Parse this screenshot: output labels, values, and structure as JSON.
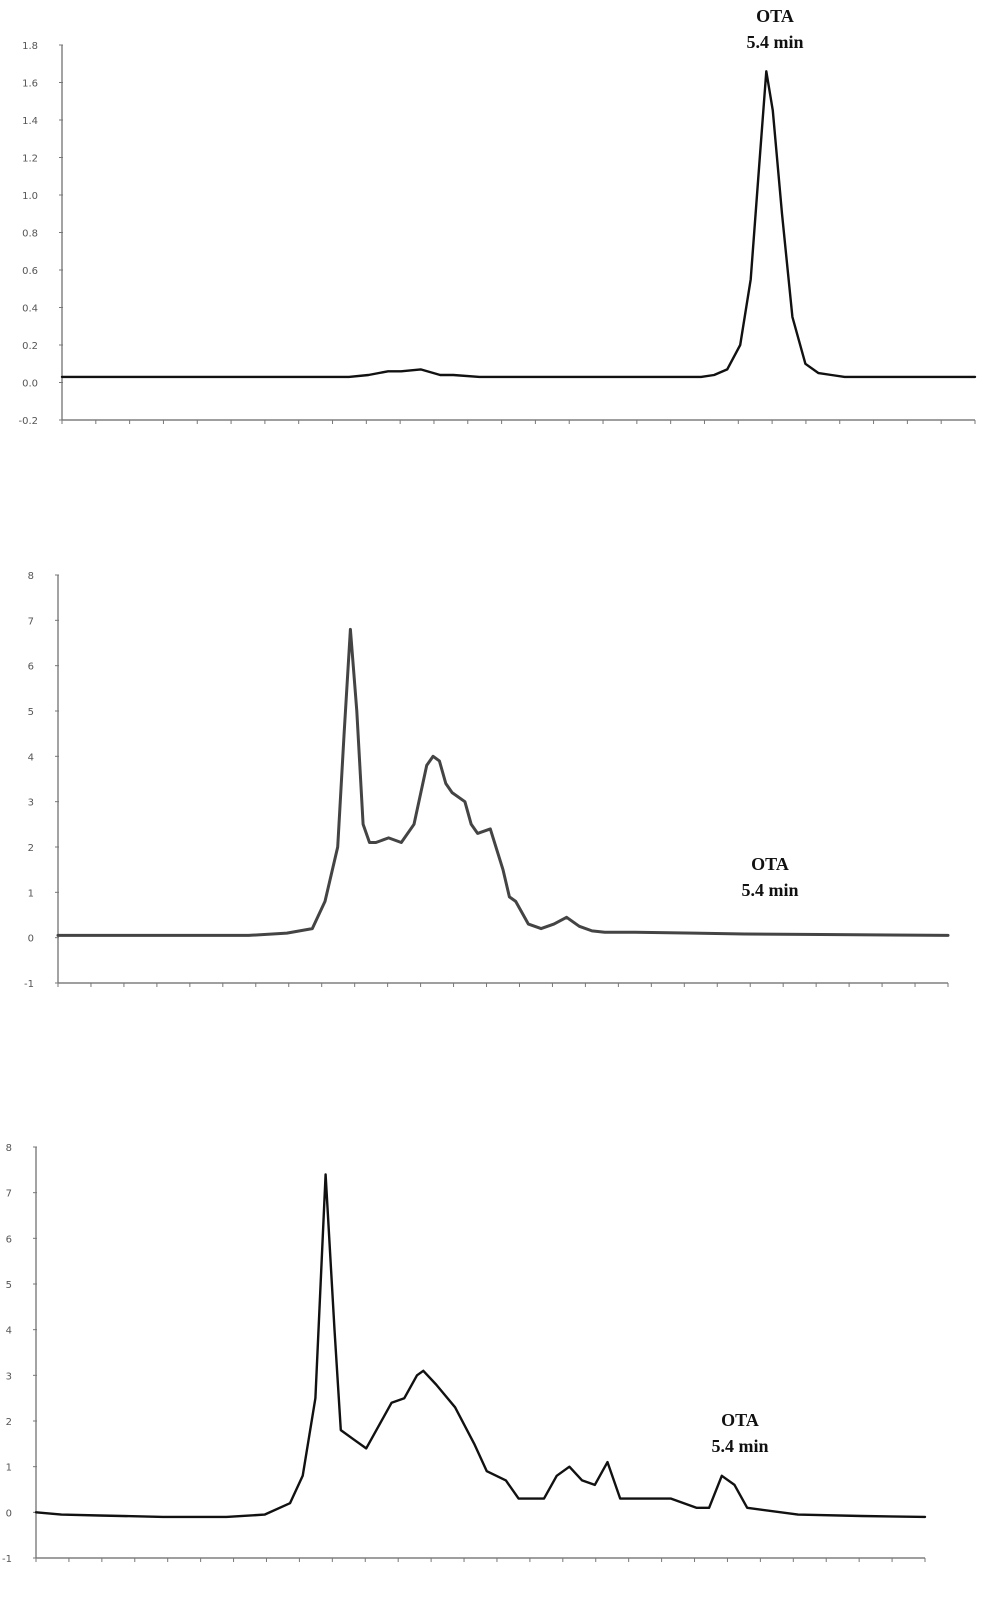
{
  "chart_data": [
    {
      "type": "line",
      "title": "",
      "xlabel": "",
      "ylabel": "",
      "ylim": [
        -0.2,
        1.8
      ],
      "xlim": [
        0,
        7
      ],
      "yticks": [
        1.8,
        1.6,
        1.4,
        1.2,
        1.0,
        0.8,
        0.6,
        0.4,
        0.2,
        0.0,
        -0.2
      ],
      "ytick_labels": [
        "1.8",
        "1.6",
        "1.4",
        "1.2",
        "1.0",
        "0.8",
        "0.6",
        "0.4",
        "0.2",
        "0.0",
        "-0.2"
      ],
      "grid": false,
      "line_color": "#111111",
      "annotation": {
        "lines": [
          "OTA",
          "5.4 min"
        ],
        "x": 5.4,
        "y": 1.66
      },
      "series": [
        {
          "x": [
            0,
            1.5,
            2.2,
            2.35,
            2.5,
            2.6,
            2.75,
            2.9,
            3.0,
            3.2,
            3.5,
            4.0,
            4.6,
            4.9,
            5.0,
            5.1,
            5.2,
            5.28,
            5.35,
            5.4,
            5.45,
            5.52,
            5.6,
            5.7,
            5.8,
            5.9,
            6.0,
            6.3,
            7.0
          ],
          "y": [
            0.03,
            0.03,
            0.03,
            0.04,
            0.06,
            0.06,
            0.07,
            0.04,
            0.04,
            0.03,
            0.03,
            0.03,
            0.03,
            0.03,
            0.04,
            0.07,
            0.2,
            0.55,
            1.2,
            1.66,
            1.45,
            0.9,
            0.35,
            0.1,
            0.05,
            0.04,
            0.03,
            0.03,
            0.03
          ]
        }
      ]
    },
    {
      "type": "line",
      "title": "",
      "xlabel": "",
      "ylabel": "",
      "ylim": [
        -1,
        8
      ],
      "xlim": [
        0,
        7
      ],
      "yticks": [
        8,
        7,
        6,
        5,
        4,
        3,
        2,
        1,
        0,
        -1
      ],
      "ytick_labels": [
        "8",
        "7",
        "6",
        "5",
        "4",
        "3",
        "2",
        "1",
        "0",
        "-1"
      ],
      "grid": false,
      "line_color": "#444444",
      "annotation": {
        "lines": [
          "OTA",
          "5.4 min"
        ],
        "x": 5.4,
        "y": 0.1
      },
      "series": [
        {
          "x": [
            0,
            1.5,
            1.8,
            2.0,
            2.1,
            2.2,
            2.25,
            2.3,
            2.35,
            2.4,
            2.45,
            2.5,
            2.6,
            2.7,
            2.8,
            2.9,
            2.95,
            3.0,
            3.05,
            3.1,
            3.2,
            3.25,
            3.3,
            3.4,
            3.5,
            3.55,
            3.6,
            3.7,
            3.8,
            3.9,
            4.0,
            4.1,
            4.2,
            4.3,
            4.5,
            5.0,
            5.4,
            6.0,
            7.0
          ],
          "y": [
            0.05,
            0.05,
            0.1,
            0.2,
            0.8,
            2.0,
            4.5,
            6.8,
            5.0,
            2.5,
            2.1,
            2.1,
            2.2,
            2.1,
            2.5,
            3.8,
            4.0,
            3.9,
            3.4,
            3.2,
            3.0,
            2.5,
            2.3,
            2.4,
            1.5,
            0.9,
            0.8,
            0.3,
            0.2,
            0.3,
            0.45,
            0.25,
            0.15,
            0.12,
            0.12,
            0.1,
            0.08,
            0.07,
            0.05
          ]
        }
      ]
    },
    {
      "type": "line",
      "title": "",
      "xlabel": "",
      "ylabel": "",
      "ylim": [
        -1,
        8
      ],
      "xlim": [
        0,
        7
      ],
      "yticks": [
        8,
        7,
        6,
        5,
        4,
        3,
        2,
        1,
        0,
        -1
      ],
      "ytick_labels": [
        "8",
        "7",
        "6",
        "5",
        "4",
        "3",
        "2",
        "1",
        "0",
        "-1"
      ],
      "grid": false,
      "line_color": "#111111",
      "annotation": {
        "lines": [
          "OTA",
          "5.4 min"
        ],
        "x": 5.4,
        "y": 0.8
      },
      "series": [
        {
          "x": [
            0,
            0.2,
            0.5,
            1.0,
            1.5,
            1.8,
            2.0,
            2.1,
            2.2,
            2.28,
            2.35,
            2.4,
            2.5,
            2.6,
            2.7,
            2.8,
            2.9,
            3.0,
            3.05,
            3.15,
            3.3,
            3.45,
            3.55,
            3.7,
            3.8,
            3.9,
            4.0,
            4.1,
            4.2,
            4.3,
            4.4,
            4.5,
            4.6,
            4.8,
            5.0,
            5.2,
            5.3,
            5.4,
            5.5,
            5.6,
            6.0,
            6.5,
            7.0
          ],
          "y": [
            0.0,
            -0.05,
            -0.07,
            -0.1,
            -0.1,
            -0.05,
            0.2,
            0.8,
            2.5,
            7.4,
            4.0,
            1.8,
            1.6,
            1.4,
            1.9,
            2.4,
            2.5,
            3.0,
            3.1,
            2.8,
            2.3,
            1.5,
            0.9,
            0.7,
            0.3,
            0.3,
            0.3,
            0.8,
            1.0,
            0.7,
            0.6,
            1.1,
            0.3,
            0.3,
            0.3,
            0.1,
            0.1,
            0.8,
            0.6,
            0.1,
            -0.05,
            -0.08,
            -0.1
          ]
        }
      ]
    }
  ]
}
